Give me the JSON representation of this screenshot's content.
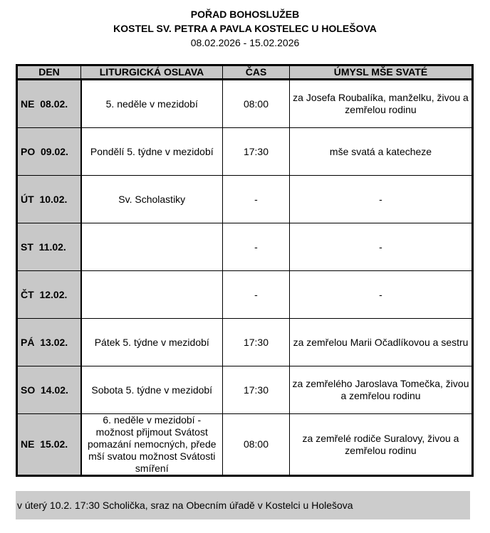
{
  "header": {
    "title": "POŘAD BOHOSLUŽEB",
    "subtitle": "KOSTEL SV. PETRA A PAVLA KOSTELEC U HOLEŠOVA",
    "date_range": "08.02.2026 - 15.02.2026"
  },
  "table": {
    "columns": [
      "DEN",
      "LITURGICKÁ OSLAVA",
      "ČAS",
      "ÚMYSL MŠE SVATÉ"
    ],
    "rows": [
      {
        "day": "NE  08.02.",
        "celebration": "5. neděle v mezidobí",
        "time": "08:00",
        "intention": "za Josefa Roubalíka, manželku, živou a zemřelou rodinu"
      },
      {
        "day": "PO  09.02.",
        "celebration": "Pondělí 5. týdne v mezidobí",
        "time": "17:30",
        "intention": "mše svatá a katecheze"
      },
      {
        "day": "ÚT  10.02.",
        "celebration": "Sv. Scholastiky",
        "time": "-",
        "intention": "-"
      },
      {
        "day": "ST  11.02.",
        "celebration": "",
        "time": "-",
        "intention": "-"
      },
      {
        "day": "ČT  12.02.",
        "celebration": "",
        "time": "-",
        "intention": "-"
      },
      {
        "day": "PÁ  13.02.",
        "celebration": "Pátek 5. týdne v mezidobí",
        "time": "17:30",
        "intention": "za zemřelou Marii Očadlíkovou a sestru"
      },
      {
        "day": "SO  14.02.",
        "celebration": "Sobota 5. týdne v mezidobí",
        "time": "17:30",
        "intention": "za zemřelého Jaroslava Tomečka, živou a zemřelou rodinu"
      },
      {
        "day": "NE  15.02.",
        "celebration": "6. neděle v mezidobí - možnost přijmout Svátost pomazání nemocných, přede mší svatou možnost Svátosti smíření",
        "time": "08:00",
        "intention": "za zemřelé rodiče Suralovy, živou a zemřelou rodinu"
      }
    ]
  },
  "note": "v úterý 10.2. 17:30 Scholička, sraz na Obecním úřadě v Kostelci u Holešova"
}
